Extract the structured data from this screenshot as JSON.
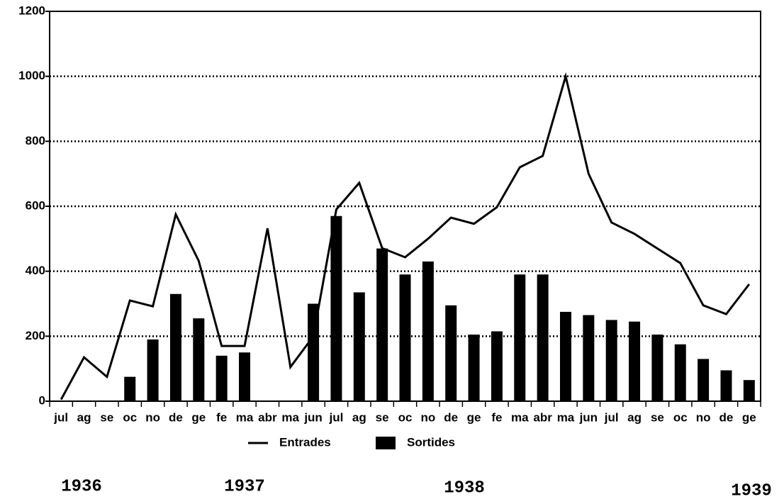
{
  "chart_data": {
    "type": "bar",
    "categories": [
      "jul",
      "ag",
      "se",
      "oc",
      "no",
      "de",
      "ge",
      "fe",
      "ma",
      "abr",
      "ma",
      "jun",
      "jul",
      "ag",
      "se",
      "oc",
      "no",
      "de",
      "ge",
      "fe",
      "ma",
      "abr",
      "ma",
      "jun",
      "jul",
      "ag",
      "se",
      "oc",
      "no",
      "de",
      "ge"
    ],
    "series": [
      {
        "name": "Entrades",
        "type": "line",
        "color": "#000000",
        "values": [
          5,
          135,
          75,
          310,
          292,
          575,
          432,
          170,
          170,
          532,
          105,
          200,
          590,
          672,
          471,
          443,
          500,
          565,
          546,
          597,
          720,
          755,
          1000,
          700,
          550,
          515,
          470,
          425,
          295,
          268,
          360
        ]
      },
      {
        "name": "Sortides",
        "type": "bar",
        "color": "#000000",
        "values": [
          0,
          0,
          0,
          75,
          190,
          330,
          255,
          140,
          150,
          0,
          0,
          300,
          570,
          335,
          470,
          390,
          430,
          295,
          205,
          215,
          390,
          390,
          275,
          265,
          250,
          245,
          205,
          175,
          130,
          95,
          65
        ]
      }
    ],
    "ylim": [
      0,
      1200
    ],
    "yticks": [
      0,
      200,
      400,
      600,
      800,
      1000,
      1200
    ],
    "grid": true,
    "annotations": [
      "1936",
      "1937",
      "1938",
      "1939"
    ]
  }
}
